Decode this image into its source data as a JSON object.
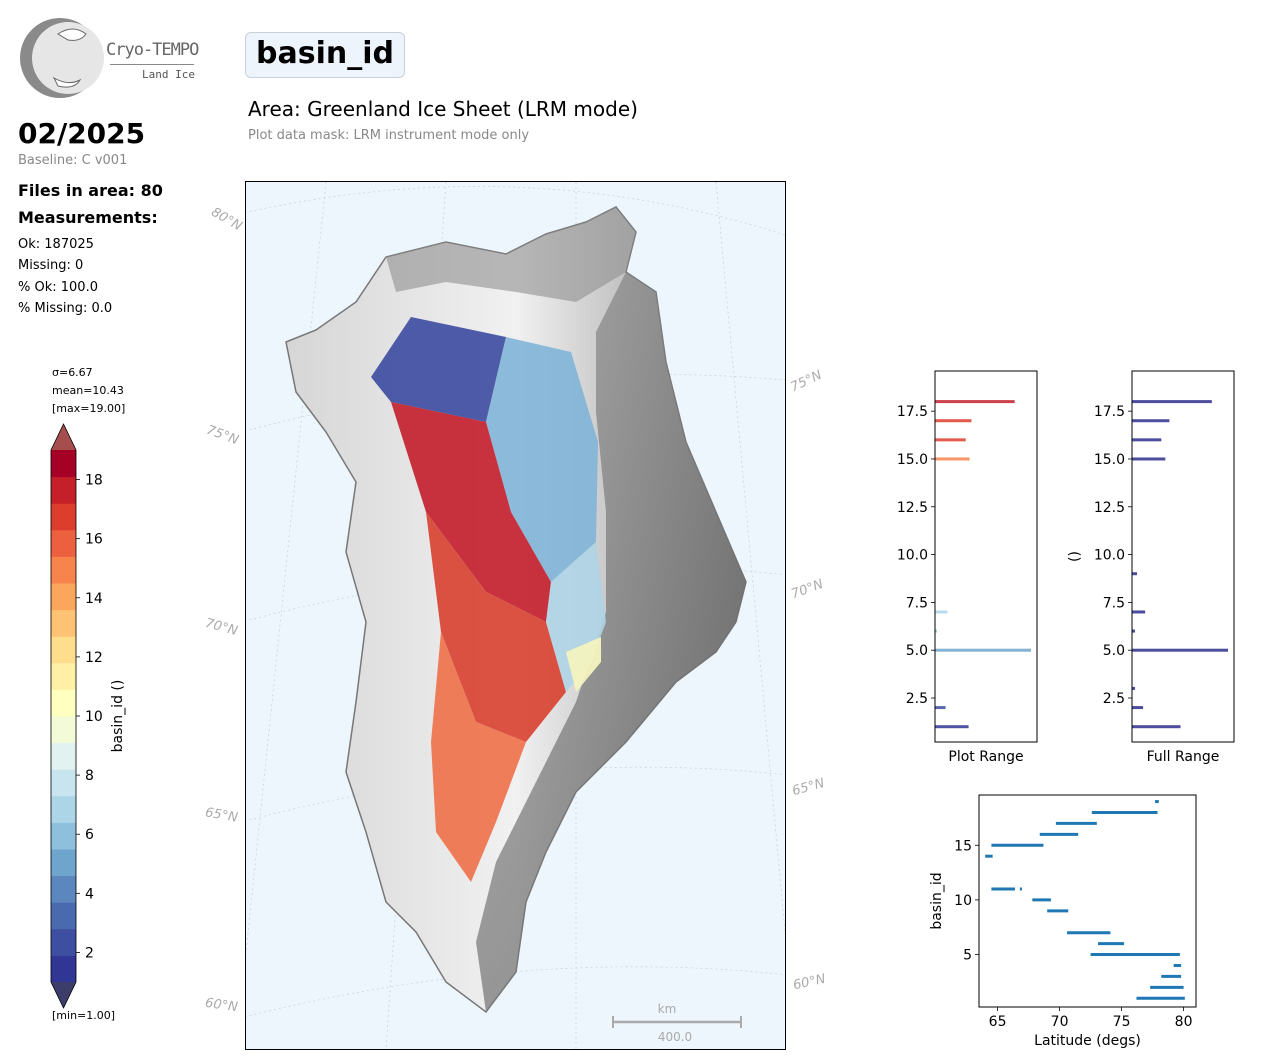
{
  "logo": {
    "brand": "Cryo-TEMPO",
    "subtitle": "Land Ice"
  },
  "header": {
    "variable": "basin_id",
    "area_title": "Area: Greenland Ice Sheet (LRM mode)",
    "mask_note": "Plot data mask: LRM instrument mode only"
  },
  "info": {
    "month": "02/2025",
    "baseline": "Baseline: C v001",
    "files": "Files in area: 80",
    "measurements_heading": "Measurements:",
    "ok": "Ok: 187025",
    "missing": "Missing: 0",
    "pct_ok": "% Ok: 100.0",
    "pct_missing": "% Missing: 0.0"
  },
  "colorbar": {
    "stats": {
      "sigma": "σ=6.67",
      "mean": "mean=10.43",
      "max": "[max=19.00]",
      "min": "[min=1.00]"
    },
    "label": "basin_id ()",
    "range": [
      1,
      19
    ],
    "ticks": [
      "2",
      "4",
      "6",
      "8",
      "10",
      "12",
      "14",
      "16",
      "18"
    ],
    "colors": [
      "#313695",
      "#3e4fa2",
      "#4a6ab0",
      "#5b87be",
      "#6fa4cc",
      "#8ebfdc",
      "#acd6e8",
      "#c8e5ef",
      "#e1f2f0",
      "#f2fad8",
      "#ffffbf",
      "#fff0a6",
      "#fedd8c",
      "#fdc273",
      "#fca55d",
      "#f7834d",
      "#ed603f",
      "#dc3d2d",
      "#c5202a",
      "#a50026"
    ],
    "extend_low": "#3d3d6b",
    "extend_high": "#a64e4e"
  },
  "map": {
    "lat_labels_left": [
      "80°N",
      "75°N",
      "70°N",
      "65°N",
      "60°N"
    ],
    "lat_labels_right": [
      "75°N",
      "70°N",
      "65°N",
      "60°N"
    ],
    "scalebar": {
      "unit": "km",
      "value": "400.0"
    }
  },
  "chart_data": [
    {
      "type": "bar",
      "orientation": "horizontal",
      "xlabel": "Plot Range",
      "ylabel": "",
      "ylim": [
        0.2,
        19.6
      ],
      "yticks": [
        "2.5",
        "5.0",
        "7.5",
        "10.0",
        "12.5",
        "15.0",
        "17.5"
      ],
      "categories": [
        1,
        2,
        5,
        6,
        7,
        9,
        15,
        16,
        17,
        18
      ],
      "values": [
        0.35,
        0.11,
        1.0,
        0.02,
        0.13,
        0.01,
        0.36,
        0.32,
        0.38,
        0.83
      ],
      "colors": [
        "#313695",
        "#3e4fa2",
        "#6fa4cc",
        "#8ebfdc",
        "#acd6e8",
        "#e1f2f0",
        "#f7834d",
        "#dc3d2d",
        "#dc3d2d",
        "#c5202a"
      ],
      "grid": false
    },
    {
      "type": "bar",
      "orientation": "horizontal",
      "xlabel": "Full Range",
      "ylabel": "()",
      "ylim": [
        0.2,
        19.6
      ],
      "yticks": [
        "2.5",
        "5.0",
        "7.5",
        "10.0",
        "12.5",
        "15.0",
        "17.5"
      ],
      "categories": [
        1,
        2,
        3,
        5,
        6,
        7,
        9,
        15,
        16,
        17,
        18
      ],
      "values": [
        0.48,
        0.11,
        0.03,
        0.95,
        0.03,
        0.13,
        0.05,
        0.33,
        0.29,
        0.37,
        0.79
      ],
      "color": "#2e2e8c",
      "grid": false
    },
    {
      "type": "scatter",
      "xlabel": "Latitude (degs)",
      "ylabel": "basin_id",
      "xlim": [
        63.5,
        81
      ],
      "ylim": [
        0.2,
        19.6
      ],
      "xticks": [
        "65",
        "70",
        "75",
        "80"
      ],
      "yticks": [
        "5",
        "10",
        "15"
      ],
      "color": "#1f77b4",
      "segments": [
        {
          "y": 1,
          "x": [
            76.2,
            80.1
          ]
        },
        {
          "y": 2,
          "x": [
            77.3,
            80.0
          ]
        },
        {
          "y": 3,
          "x": [
            78.2,
            79.8
          ]
        },
        {
          "y": 4,
          "x": [
            79.2,
            79.8
          ]
        },
        {
          "y": 5,
          "x": [
            72.5,
            79.7
          ]
        },
        {
          "y": 6,
          "x": [
            73.1,
            75.2
          ]
        },
        {
          "y": 7,
          "x": [
            70.6,
            74.1
          ]
        },
        {
          "y": 9,
          "x": [
            69.0,
            70.7
          ]
        },
        {
          "y": 10,
          "x": [
            67.8,
            69.3
          ]
        },
        {
          "y": 11,
          "x": [
            64.5,
            66.4
          ]
        },
        {
          "y": 11,
          "x": [
            66.8,
            66.9
          ]
        },
        {
          "y": 14,
          "x": [
            64.0,
            64.6
          ]
        },
        {
          "y": 15,
          "x": [
            64.5,
            68.7
          ]
        },
        {
          "y": 16,
          "x": [
            68.4,
            71.5
          ]
        },
        {
          "y": 17,
          "x": [
            69.7,
            73.0
          ]
        },
        {
          "y": 18,
          "x": [
            72.6,
            77.9
          ]
        },
        {
          "y": 19,
          "x": [
            77.7,
            78.0
          ]
        }
      ],
      "grid": false
    }
  ]
}
